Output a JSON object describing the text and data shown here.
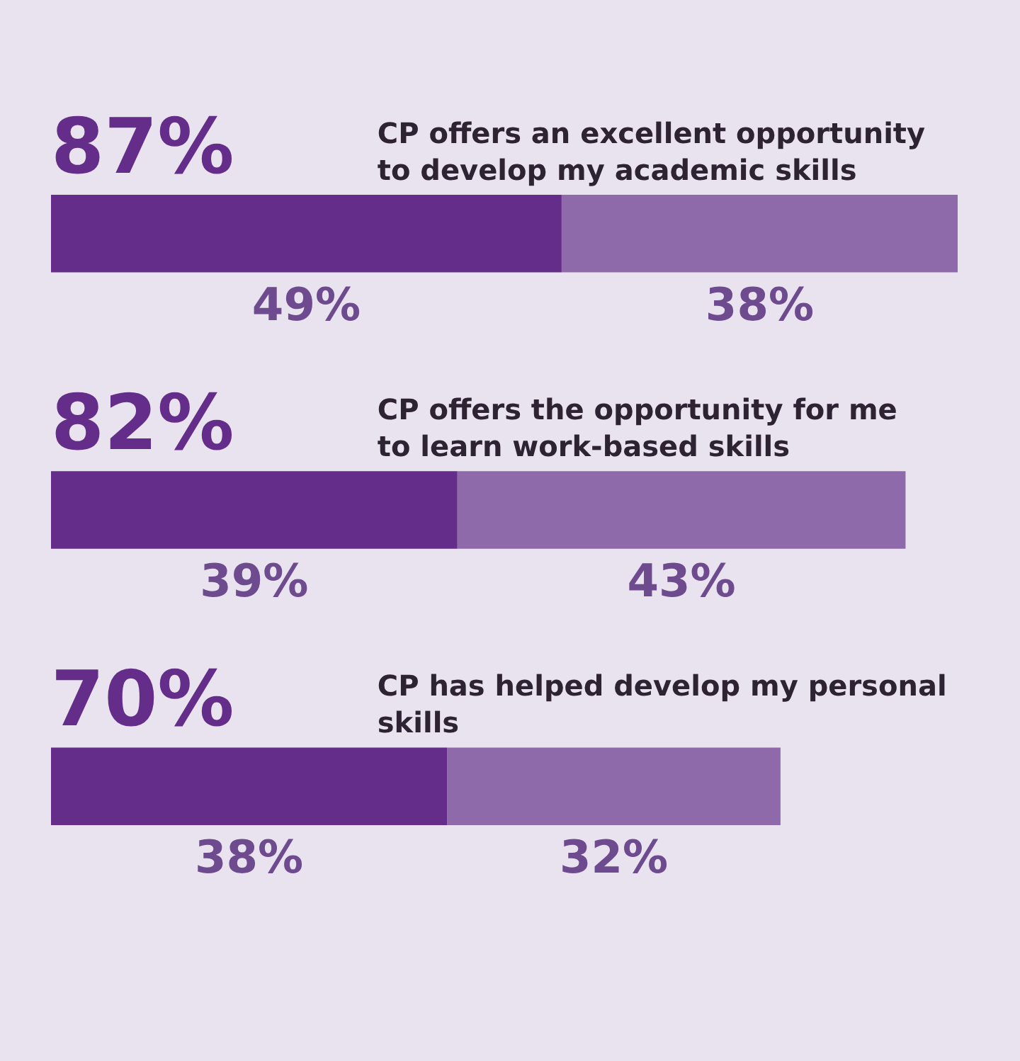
{
  "chart_data": {
    "type": "bar",
    "orientation": "horizontal",
    "stacked": true,
    "categories": [
      "CP offers an excellent opportunity to develop my academic skills",
      "CP offers the opportunity for me to learn work-based skills",
      "CP has helped develop my personal skills"
    ],
    "series": [
      {
        "color": "#652d8a",
        "values": [
          49,
          39,
          38
        ],
        "value_labels": [
          "49%",
          "39%",
          "38%"
        ]
      },
      {
        "color": "#8e6aaa",
        "values": [
          38,
          43,
          32
        ],
        "value_labels": [
          "38%",
          "43%",
          "32%"
        ]
      }
    ],
    "totals": [
      "87%",
      "82%",
      "70%"
    ],
    "legend": false
  }
}
